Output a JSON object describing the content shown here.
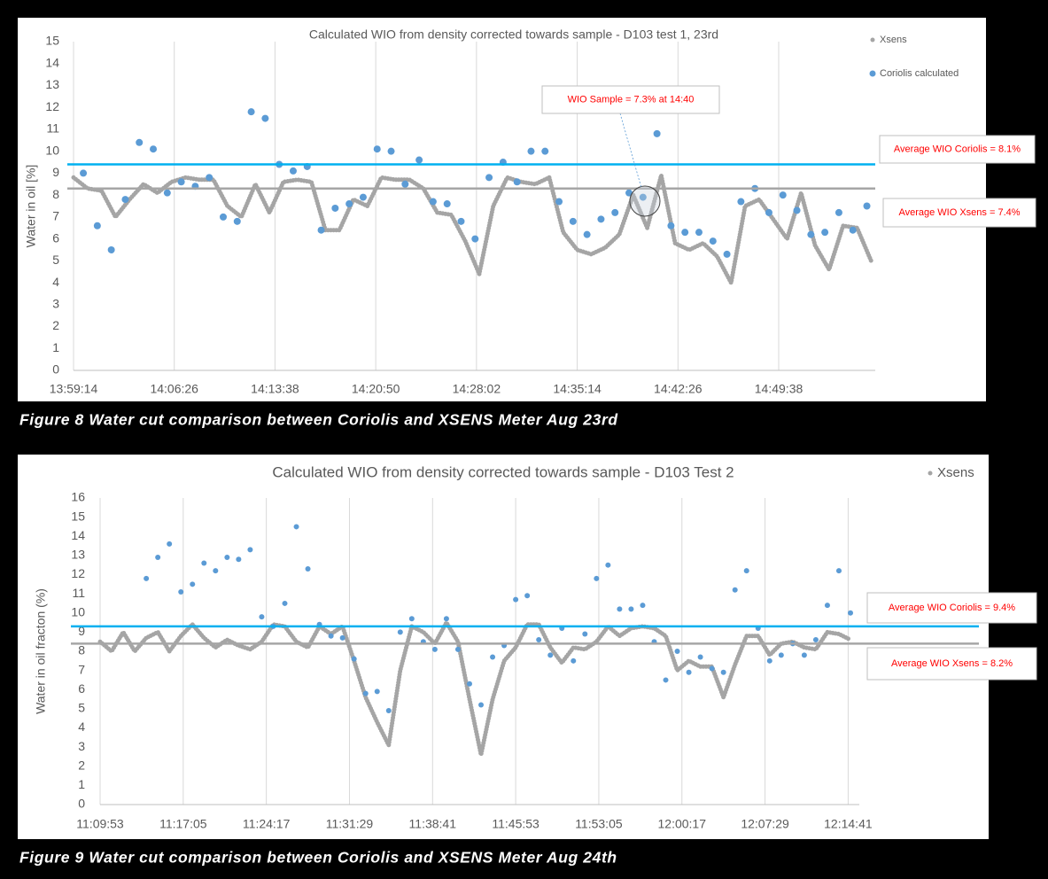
{
  "chart_data": [
    {
      "type": "scatter",
      "title": "Calculated WIO from density corrected towards sample - D103 test 1, 23rd",
      "caption": "Figure 8 Water cut comparison between Coriolis and XSENS Meter Aug 23rd",
      "y_label": "Water in oil [%]",
      "xlim": [
        "13:59:14",
        "14:56:32"
      ],
      "xticks": [
        "13:59:14",
        "14:06:26",
        "14:13:38",
        "14:20:50",
        "14:28:02",
        "14:35:14",
        "14:42:26",
        "14:49:38"
      ],
      "ylim": [
        0,
        15
      ],
      "yticks": [
        0,
        1,
        2,
        3,
        4,
        5,
        6,
        7,
        8,
        9,
        10,
        11,
        12,
        13,
        14,
        15
      ],
      "grid": "x",
      "legend": "top-right",
      "series": [
        {
          "name": "Xsens",
          "color": "#a5a5a5",
          "mode": "line",
          "x": [
            "13:59:14",
            "14:00:14",
            "14:01:14",
            "14:02:14",
            "14:03:14",
            "14:04:14",
            "14:05:14",
            "14:06:14",
            "14:07:14",
            "14:08:14",
            "14:09:14",
            "14:10:14",
            "14:11:14",
            "14:12:14",
            "14:13:14",
            "14:14:14",
            "14:15:14",
            "14:16:14",
            "14:17:14",
            "14:18:14",
            "14:19:14",
            "14:20:14",
            "14:21:14",
            "14:22:14",
            "14:23:14",
            "14:24:14",
            "14:25:14",
            "14:26:14",
            "14:27:14",
            "14:28:14",
            "14:29:14",
            "14:30:14",
            "14:31:14",
            "14:32:14",
            "14:33:14",
            "14:34:14",
            "14:35:14",
            "14:36:14",
            "14:37:14",
            "14:38:14",
            "14:39:14",
            "14:40:14",
            "14:41:14",
            "14:42:14",
            "14:43:14",
            "14:44:14",
            "14:45:14",
            "14:46:14",
            "14:47:14",
            "14:48:14",
            "14:49:14",
            "14:50:14",
            "14:51:14",
            "14:52:14",
            "14:53:14",
            "14:54:14",
            "14:55:14",
            "14:56:14"
          ],
          "values": [
            8.8,
            8.3,
            8.2,
            7.0,
            7.8,
            8.5,
            8.1,
            8.6,
            8.8,
            8.7,
            8.7,
            7.5,
            7.0,
            8.5,
            7.2,
            8.6,
            8.7,
            8.6,
            6.4,
            6.4,
            7.8,
            7.5,
            8.8,
            8.7,
            8.7,
            8.3,
            7.2,
            7.1,
            5.9,
            4.4,
            7.5,
            8.8,
            8.6,
            8.5,
            8.8,
            6.3,
            5.5,
            5.3,
            5.6,
            6.2,
            8.0,
            6.5,
            8.9,
            5.8,
            5.5,
            5.8,
            5.2,
            4.0,
            7.5,
            7.8,
            6.9,
            6.0,
            8.1,
            5.7,
            4.6,
            6.6,
            6.5,
            5.0
          ]
        },
        {
          "name": "Coriolis calculated",
          "color": "#5b9bd5",
          "mode": "markers",
          "x": [
            "13:59:56",
            "14:00:56",
            "14:01:56",
            "14:02:56",
            "14:03:56",
            "14:04:56",
            "14:05:56",
            "14:06:56",
            "14:07:56",
            "14:08:56",
            "14:09:56",
            "14:10:56",
            "14:11:56",
            "14:12:56",
            "14:13:56",
            "14:14:56",
            "14:15:56",
            "14:16:56",
            "14:17:56",
            "14:18:56",
            "14:19:56",
            "14:20:56",
            "14:21:56",
            "14:22:56",
            "14:23:56",
            "14:24:56",
            "14:25:56",
            "14:26:56",
            "14:27:56",
            "14:28:56",
            "14:29:56",
            "14:30:56",
            "14:31:56",
            "14:32:56",
            "14:33:56",
            "14:34:56",
            "14:35:56",
            "14:36:56",
            "14:37:56",
            "14:38:56",
            "14:39:56",
            "14:40:56",
            "14:41:56",
            "14:42:56",
            "14:43:56",
            "14:44:56",
            "14:45:56",
            "14:46:56",
            "14:47:56",
            "14:48:56",
            "14:49:56",
            "14:50:56",
            "14:51:56",
            "14:52:56",
            "14:53:56",
            "14:54:56",
            "14:55:56"
          ],
          "values": [
            9.0,
            6.6,
            5.5,
            7.8,
            10.4,
            10.1,
            8.1,
            8.6,
            8.4,
            8.8,
            7.0,
            6.8,
            11.8,
            11.5,
            9.4,
            9.1,
            9.3,
            6.4,
            7.4,
            7.6,
            7.9,
            10.1,
            10.0,
            8.5,
            9.6,
            7.7,
            7.6,
            6.8,
            6.0,
            8.8,
            9.5,
            8.6,
            10.0,
            10.0,
            7.7,
            6.8,
            6.2,
            6.9,
            7.2,
            8.1,
            7.9,
            10.8,
            6.6,
            6.3,
            6.3,
            5.9,
            5.3,
            7.7,
            8.3,
            7.2,
            8.0,
            7.3,
            6.2,
            6.3,
            7.2,
            6.4,
            7.5
          ]
        }
      ],
      "reference_lines": [
        {
          "value": 9.4,
          "color": "#00b0f0"
        },
        {
          "value": 8.3,
          "color": "#a6a6a6"
        }
      ],
      "annotations": [
        "Average WIO Coriolis = 8.1%",
        "Average WIO Xsens = 7.4%",
        "WIO Sample = 7.3% at 14:40"
      ]
    },
    {
      "type": "scatter",
      "title": "Calculated WIO from density corrected towards sample - D103 Test 2",
      "caption": "Figure 9 Water cut comparison between Coriolis and XSENS Meter Aug 24th",
      "y_label": "Water in oil fracton (%)",
      "xlim": [
        "11:09:53",
        "12:15:39"
      ],
      "xticks": [
        "11:09:53",
        "11:17:05",
        "11:24:17",
        "11:31:29",
        "11:38:41",
        "11:45:53",
        "11:53:05",
        "12:00:17",
        "12:07:29",
        "12:14:41"
      ],
      "ylim": [
        0,
        16
      ],
      "yticks": [
        0,
        1,
        2,
        3,
        4,
        5,
        6,
        7,
        8,
        9,
        10,
        11,
        12,
        13,
        14,
        15,
        16
      ],
      "grid": "x",
      "legend": "top-right",
      "series": [
        {
          "name": "Xsens",
          "color": "#a5a5a5",
          "mode": "line",
          "x": [
            "11:09:53",
            "11:10:53",
            "11:11:53",
            "11:12:53",
            "11:13:53",
            "11:14:53",
            "11:15:53",
            "11:16:53",
            "11:17:53",
            "11:18:53",
            "11:19:53",
            "11:20:53",
            "11:21:53",
            "11:22:53",
            "11:23:53",
            "11:24:53",
            "11:25:53",
            "11:26:53",
            "11:27:53",
            "11:28:53",
            "11:29:53",
            "11:30:53",
            "11:31:53",
            "11:32:53",
            "11:33:53",
            "11:34:53",
            "11:35:53",
            "11:36:53",
            "11:37:53",
            "11:38:53",
            "11:39:53",
            "11:40:53",
            "11:41:53",
            "11:42:53",
            "11:43:53",
            "11:44:53",
            "11:45:53",
            "11:46:53",
            "11:47:53",
            "11:48:53",
            "11:49:53",
            "11:50:53",
            "11:51:53",
            "11:52:53",
            "11:53:53",
            "11:54:53",
            "11:55:53",
            "11:56:53",
            "11:57:53",
            "11:58:53",
            "11:59:53",
            "12:00:53",
            "12:01:53",
            "12:02:53",
            "12:03:53",
            "12:04:53",
            "12:05:53",
            "12:06:53",
            "12:07:53",
            "12:08:53",
            "12:09:53",
            "12:10:53",
            "12:11:53",
            "12:12:53",
            "12:13:53",
            "12:14:53"
          ],
          "values": [
            8.5,
            8.0,
            9.0,
            8.0,
            8.7,
            9.0,
            8.0,
            8.8,
            9.4,
            8.7,
            8.2,
            8.6,
            8.3,
            8.1,
            8.5,
            9.4,
            9.3,
            8.5,
            8.2,
            9.3,
            8.9,
            9.3,
            7.5,
            5.6,
            4.3,
            3.1,
            7.0,
            9.3,
            9.0,
            8.4,
            9.5,
            8.5,
            5.5,
            2.6,
            5.5,
            7.5,
            8.2,
            9.4,
            9.4,
            8.2,
            7.4,
            8.2,
            8.1,
            8.5,
            9.3,
            8.8,
            9.2,
            9.3,
            9.2,
            8.8,
            7.0,
            7.5,
            7.2,
            7.2,
            5.6,
            7.3,
            8.8,
            8.8,
            7.8,
            8.4,
            8.5,
            8.2,
            8.1,
            9.0,
            8.9,
            8.6
          ]
        },
        {
          "color": "#5b9bd5",
          "mode": "markers",
          "x": [
            "11:13:53",
            "11:14:53",
            "11:15:53",
            "11:16:53",
            "11:17:53",
            "11:18:53",
            "11:19:53",
            "11:20:53",
            "11:21:53",
            "11:22:53",
            "11:23:53",
            "11:24:53",
            "11:25:53",
            "11:26:53",
            "11:27:53",
            "11:28:53",
            "11:29:53",
            "11:30:53",
            "11:31:53",
            "11:32:53",
            "11:33:53",
            "11:34:53",
            "11:35:53",
            "11:36:53",
            "11:37:53",
            "11:38:53",
            "11:39:53",
            "11:40:53",
            "11:41:53",
            "11:42:53",
            "11:43:53",
            "11:44:53",
            "11:45:53",
            "11:46:53",
            "11:47:53",
            "11:48:53",
            "11:49:53",
            "11:50:53",
            "11:51:53",
            "11:52:53",
            "11:53:53",
            "11:54:53",
            "11:55:53",
            "11:56:53",
            "11:57:53",
            "11:58:53",
            "11:59:53",
            "12:00:53",
            "12:01:53",
            "12:02:53",
            "12:03:53",
            "12:04:53",
            "12:05:53",
            "12:06:53",
            "12:07:53",
            "12:08:53",
            "12:09:53",
            "12:10:53",
            "12:11:53",
            "12:12:53",
            "12:13:53",
            "12:14:53"
          ],
          "values": [
            11.8,
            12.9,
            13.6,
            11.1,
            11.5,
            12.6,
            12.2,
            12.9,
            12.8,
            13.3,
            9.8,
            9.3,
            10.5,
            14.5,
            12.3,
            9.4,
            8.8,
            8.7,
            7.6,
            5.8,
            5.9,
            4.9,
            9.0,
            9.7,
            8.5,
            8.1,
            9.7,
            8.1,
            6.3,
            5.2,
            7.7,
            8.3,
            10.7,
            10.9,
            8.6,
            7.8,
            9.2,
            7.5,
            8.9,
            11.8,
            12.5,
            10.2,
            10.2,
            10.4,
            8.5,
            6.5,
            8.0,
            6.9,
            7.7,
            7.1,
            6.9,
            11.2,
            12.2,
            9.2,
            7.5,
            7.8,
            8.4,
            7.8,
            8.6,
            10.4,
            12.2,
            10.0
          ]
        }
      ],
      "reference_lines": [
        {
          "value": 9.3,
          "color": "#00b0f0"
        },
        {
          "value": 8.4,
          "color": "#a6a6a6"
        }
      ],
      "annotations": [
        "Average WIO Coriolis = 9.4%",
        "Average WIO Xsens = 8.2%"
      ]
    }
  ]
}
